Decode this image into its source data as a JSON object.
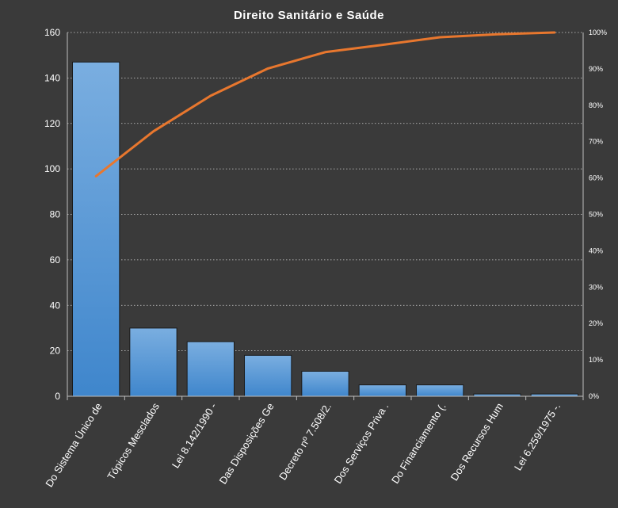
{
  "chart_data": {
    "type": "bar",
    "title": "Direito  Sanitário  e Saúde",
    "categories": [
      "Do Sistema Único de",
      "Tópicos Mesclados",
      "Lei 8.142/1990 -",
      "Das Disposições Ge",
      "Decreto nº 7.508/2.",
      "Dos Serviços Priva .",
      "Do Financiamento (.",
      "Dos Recursos Hum",
      "Lei 6.259/1975 -."
    ],
    "series": [
      {
        "type": "bar",
        "values": [
          147,
          30,
          24,
          18,
          11,
          5,
          5,
          1,
          1
        ]
      },
      {
        "type": "line",
        "axis": "secondary",
        "values": [
          60.5,
          72.8,
          82.6,
          90.1,
          94.6,
          96.6,
          98.7,
          99.5,
          100
        ]
      }
    ],
    "ylim": [
      0,
      160
    ],
    "yticks": [
      "0",
      "20",
      "40",
      "60",
      "80",
      "100",
      "120",
      "140",
      "160"
    ],
    "y2lim": [
      0,
      100
    ],
    "y2ticks": [
      "0%",
      "10%",
      "20%",
      "30%",
      "40%",
      "50%",
      "60%",
      "70%",
      "80%",
      "90%",
      "100%"
    ],
    "grid": true,
    "legend": "none",
    "colors": {
      "background": "#3a3a3a",
      "bar_top": "#7aaee0",
      "bar_bottom": "#3f86cc",
      "line": "#e8772e",
      "text": "#ffffff"
    }
  }
}
